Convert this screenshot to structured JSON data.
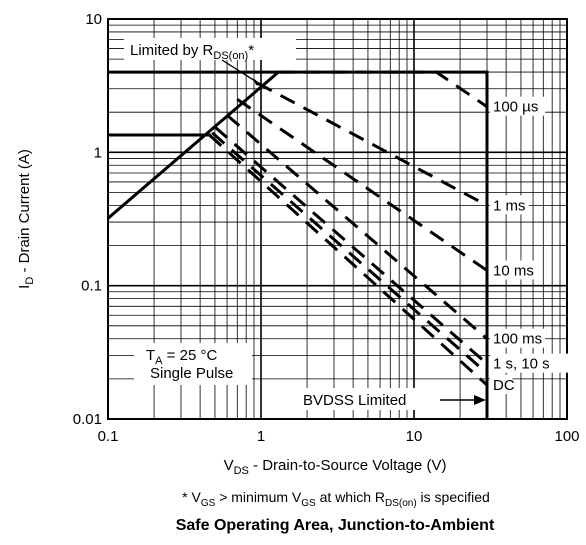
{
  "chart_data": {
    "type": "line",
    "title": "Safe Operating Area, Junction-to-Ambient",
    "footnote": "* V_GS > minimum V_GS at which R_DS(on) is specified",
    "footnote_parts": {
      "star": "* V",
      "vgs_sub": "GS",
      "gt": " > minimum V",
      "vgs_sub2": "GS",
      "at_which": " at which R",
      "rds_sub": "DS(on)",
      "tail": " is specified"
    },
    "xlabel": "V_DS - Drain-to-Source Voltage (V)",
    "xlabel_parts": {
      "main": "V",
      "sub": "DS",
      "rest": " - Drain-to-Source Voltage (V)"
    },
    "ylabel": "I_D - Drain Current (A)",
    "ylabel_parts": {
      "main": "I",
      "sub": "D",
      "rest": " - Drain Current (A)"
    },
    "x_scale": "log",
    "y_scale": "log",
    "xlim": [
      0.1,
      100
    ],
    "ylim": [
      0.01,
      10
    ],
    "x_ticks": [
      0.1,
      1,
      10,
      100
    ],
    "x_tick_labels": [
      "0.1",
      "1",
      "10",
      "100"
    ],
    "y_ticks": [
      0.01,
      0.1,
      1,
      10
    ],
    "y_tick_labels": [
      "0.01",
      "0.1",
      "1",
      "10"
    ],
    "grid": true,
    "annotations": {
      "rds_limited": {
        "main": "Limited by R",
        "sub": "DS(on)",
        "tail": "*"
      },
      "bvdss": "BVDSS  Limited",
      "condition_ta": {
        "main": "T",
        "sub": "A",
        "tail": " = 25 °C"
      },
      "condition_pulse": "Single Pulse"
    },
    "series": [
      {
        "name": "Limited by R_DS(on)",
        "style": "solid",
        "points": [
          [
            0.1,
            0.32
          ],
          [
            1.3,
            4.0
          ]
        ]
      },
      {
        "name": "current limit",
        "style": "solid",
        "points": [
          [
            0.1,
            4.0
          ],
          [
            30,
            4.0
          ],
          [
            30,
            0.01
          ]
        ]
      },
      {
        "name": "DC limit step",
        "style": "solid",
        "points": [
          [
            0.1,
            1.35
          ],
          [
            0.47,
            1.35
          ]
        ]
      },
      {
        "name": "100 µs",
        "label": "100 µs",
        "label_y": 2.2,
        "style": "dashed",
        "points": [
          [
            1.3,
            4.0
          ],
          [
            14,
            4.0
          ],
          [
            30,
            2.2
          ]
        ]
      },
      {
        "name": "1 ms",
        "label": "1 ms",
        "label_y": 0.4,
        "style": "dashed",
        "points": [
          [
            0.95,
            3.3
          ],
          [
            30,
            0.4
          ]
        ]
      },
      {
        "name": "10 ms",
        "label": "10 ms",
        "label_y": 0.13,
        "style": "dashed",
        "points": [
          [
            0.7,
            2.5
          ],
          [
            30,
            0.13
          ]
        ]
      },
      {
        "name": "100 ms",
        "label": "100 ms",
        "label_y": 0.04,
        "style": "dashed",
        "points": [
          [
            0.6,
            1.9
          ],
          [
            30,
            0.04
          ]
        ]
      },
      {
        "name": "1 s, 10 s",
        "label": "1 s, 10 s",
        "label_y": 0.026,
        "style": "dashed",
        "points": [
          [
            0.5,
            1.55
          ],
          [
            30,
            0.026
          ]
        ]
      },
      {
        "name": "1 s, 10 s (b)",
        "style": "dashed",
        "points": [
          [
            0.48,
            1.4
          ],
          [
            30,
            0.022
          ]
        ]
      },
      {
        "name": "DC",
        "label": "DC",
        "label_y": 0.018,
        "style": "dashed",
        "points": [
          [
            0.46,
            1.35
          ],
          [
            30,
            0.018
          ]
        ]
      }
    ]
  }
}
